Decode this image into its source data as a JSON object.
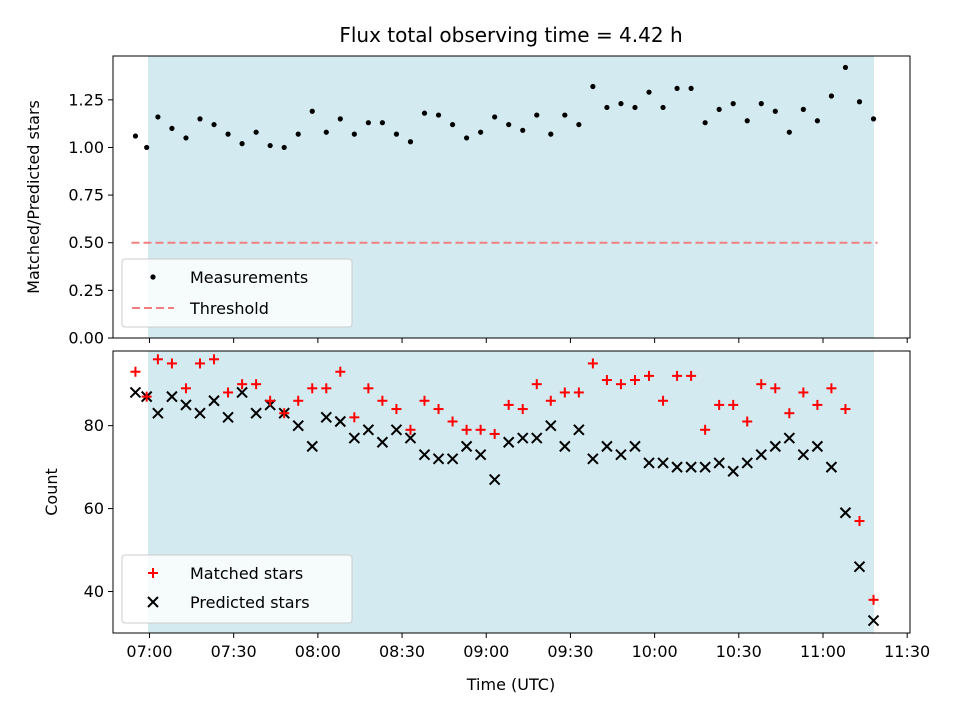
{
  "figure": {
    "title": "Flux total observing time = 4.42 h",
    "xlabel": "Time (UTC)",
    "shade_color": "#d3eaf0",
    "x_ticks": [
      "07:00",
      "07:30",
      "08:00",
      "08:30",
      "09:00",
      "09:30",
      "10:00",
      "10:30",
      "11:00",
      "11:30"
    ]
  },
  "chart_data": [
    {
      "type": "scatter",
      "ylabel": "Matched/Predicted stars",
      "ylim": [
        0,
        1.48
      ],
      "y_ticks": [
        "0.00",
        "0.25",
        "0.50",
        "0.75",
        "1.00",
        "1.25"
      ],
      "y_tick_values": [
        0,
        0.25,
        0.5,
        0.75,
        1.0,
        1.25
      ],
      "threshold": 0.5,
      "legend_placement": "lower-left",
      "legend": [
        {
          "label": "Measurements",
          "marker": "dot",
          "color": "#000000"
        },
        {
          "label": "Threshold",
          "marker": "dashed-line",
          "color": "#f08080"
        }
      ],
      "x": [
        "06:55",
        "06:59",
        "07:03",
        "07:08",
        "07:13",
        "07:18",
        "07:23",
        "07:28",
        "07:33",
        "07:38",
        "07:43",
        "07:48",
        "07:53",
        "07:58",
        "08:03",
        "08:08",
        "08:13",
        "08:18",
        "08:23",
        "08:28",
        "08:33",
        "08:38",
        "08:43",
        "08:48",
        "08:53",
        "08:58",
        "09:03",
        "09:08",
        "09:13",
        "09:18",
        "09:23",
        "09:28",
        "09:33",
        "09:38",
        "09:43",
        "09:48",
        "09:53",
        "09:58",
        "10:03",
        "10:08",
        "10:13",
        "10:18",
        "10:23",
        "10:28",
        "10:33",
        "10:38",
        "10:43",
        "10:48",
        "10:53",
        "10:58",
        "11:03",
        "11:08",
        "11:13",
        "11:18"
      ],
      "values": [
        1.06,
        1.0,
        1.16,
        1.1,
        1.05,
        1.15,
        1.12,
        1.07,
        1.02,
        1.08,
        1.01,
        1.0,
        1.07,
        1.19,
        1.08,
        1.15,
        1.07,
        1.13,
        1.13,
        1.07,
        1.03,
        1.18,
        1.17,
        1.12,
        1.05,
        1.08,
        1.16,
        1.12,
        1.09,
        1.17,
        1.07,
        1.17,
        1.12,
        1.32,
        1.21,
        1.23,
        1.21,
        1.29,
        1.21,
        1.31,
        1.31,
        1.13,
        1.2,
        1.23,
        1.14,
        1.23,
        1.19,
        1.08,
        1.2,
        1.14,
        1.27,
        1.42,
        1.24,
        1.15
      ]
    },
    {
      "type": "scatter",
      "ylabel": "Count",
      "ylim": [
        30,
        98
      ],
      "y_ticks": [
        "40",
        "60",
        "80"
      ],
      "y_tick_values": [
        40,
        60,
        80
      ],
      "legend_placement": "lower-left",
      "x": [
        "06:55",
        "06:59",
        "07:03",
        "07:08",
        "07:13",
        "07:18",
        "07:23",
        "07:28",
        "07:33",
        "07:38",
        "07:43",
        "07:48",
        "07:53",
        "07:58",
        "08:03",
        "08:08",
        "08:13",
        "08:18",
        "08:23",
        "08:28",
        "08:33",
        "08:38",
        "08:43",
        "08:48",
        "08:53",
        "08:58",
        "09:03",
        "09:08",
        "09:13",
        "09:18",
        "09:23",
        "09:28",
        "09:33",
        "09:38",
        "09:43",
        "09:48",
        "09:53",
        "09:58",
        "10:03",
        "10:08",
        "10:13",
        "10:18",
        "10:23",
        "10:28",
        "10:33",
        "10:38",
        "10:43",
        "10:48",
        "10:53",
        "10:58",
        "11:03",
        "11:08",
        "11:13",
        "11:18"
      ],
      "series": [
        {
          "name": "Matched stars",
          "marker": "plus",
          "color": "#ff0000",
          "values": [
            93,
            87,
            96,
            95,
            89,
            95,
            96,
            88,
            90,
            90,
            86,
            83,
            86,
            89,
            89,
            93,
            82,
            89,
            86,
            84,
            79,
            86,
            84,
            81,
            79,
            79,
            78,
            85,
            84,
            90,
            86,
            88,
            88,
            95,
            91,
            90,
            91,
            92,
            86,
            92,
            92,
            79,
            85,
            85,
            81,
            90,
            89,
            83,
            88,
            85,
            89,
            84,
            57,
            38
          ]
        },
        {
          "name": "Predicted stars",
          "marker": "x",
          "color": "#000000",
          "values": [
            88,
            87,
            83,
            87,
            85,
            83,
            86,
            82,
            88,
            83,
            85,
            83,
            80,
            75,
            82,
            81,
            77,
            79,
            76,
            79,
            77,
            73,
            72,
            72,
            75,
            73,
            67,
            76,
            77,
            77,
            80,
            75,
            79,
            72,
            75,
            73,
            75,
            71,
            71,
            70,
            70,
            70,
            71,
            69,
            71,
            73,
            75,
            77,
            73,
            75,
            70,
            59,
            46,
            33
          ]
        }
      ]
    }
  ]
}
